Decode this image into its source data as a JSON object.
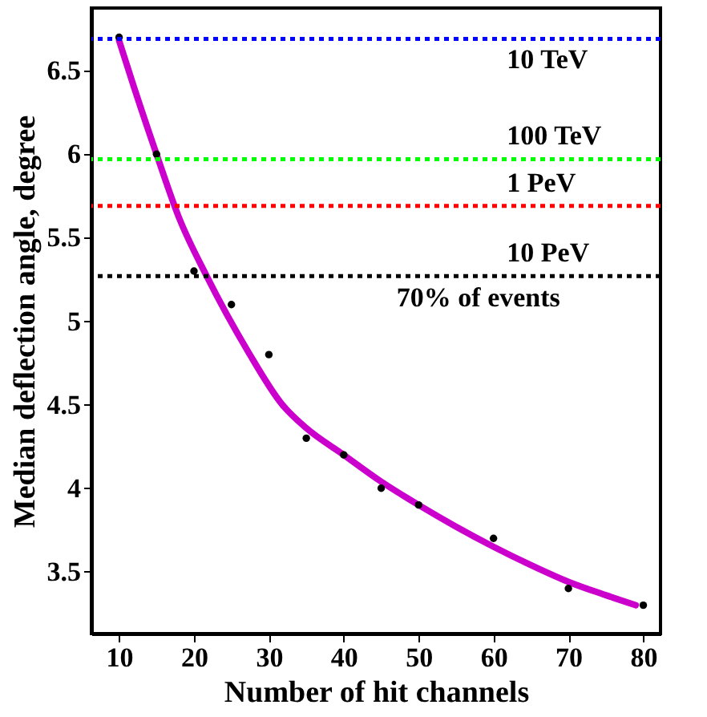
{
  "chart_data": {
    "type": "scatter",
    "xlabel": "Number of hit channels",
    "ylabel": "Median deflection angle, degree",
    "xlim": [
      6.3,
      82.3
    ],
    "ylim": [
      3.13,
      6.875
    ],
    "xticks": [
      10,
      20,
      30,
      40,
      50,
      60,
      70,
      80
    ],
    "yticks": [
      3.5,
      4,
      4.5,
      5,
      5.5,
      6,
      6.5
    ],
    "grid": false,
    "series": [
      {
        "marker": "circle",
        "color": "#000000",
        "x": [
          10,
          15,
          20,
          25,
          30,
          35,
          40,
          45,
          50,
          60,
          70,
          80
        ],
        "values": [
          6.7,
          6.0,
          5.3,
          5.1,
          4.8,
          4.3,
          4.2,
          4.0,
          3.9,
          3.7,
          3.4,
          3.3
        ]
      },
      {
        "type": "line",
        "line_style": "solid",
        "color": "#cc00cc",
        "x": [
          10,
          12,
          15,
          18,
          21.7,
          27.2,
          31.8,
          35,
          40,
          45,
          50,
          55,
          60,
          65,
          70,
          75,
          79
        ],
        "values": [
          6.68,
          6.4,
          6.0,
          5.62,
          5.27,
          4.82,
          4.5,
          4.36,
          4.2,
          4.04,
          3.9,
          3.77,
          3.65,
          3.54,
          3.44,
          3.36,
          3.3
        ]
      }
    ],
    "ref_lines": [
      {
        "axis": "y",
        "value": 6.69,
        "color": "#0000ff",
        "line_style": "dotted",
        "label": "10 TeV"
      },
      {
        "axis": "y",
        "value": 5.97,
        "color": "#00ff00",
        "line_style": "dotted",
        "label": "100 TeV"
      },
      {
        "axis": "y",
        "value": 5.69,
        "color": "#ff0000",
        "line_style": "dotted",
        "label": "1 PeV"
      },
      {
        "axis": "y",
        "value": 5.27,
        "color": "#000000",
        "line_style": "dotted",
        "label": "10 PeV"
      }
    ],
    "annotations": [
      "70% of events"
    ]
  }
}
